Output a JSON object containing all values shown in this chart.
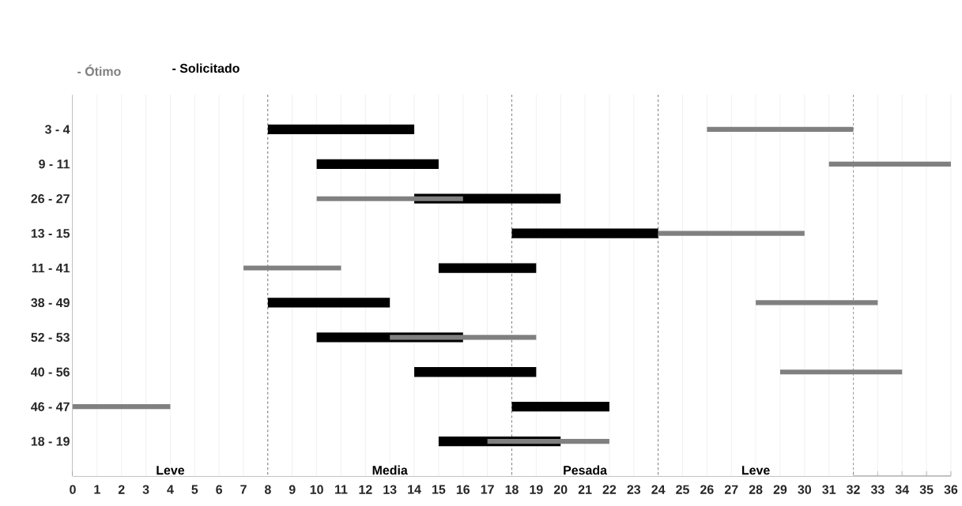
{
  "chart_data": {
    "type": "bar",
    "orientation": "horizontal",
    "categories": [
      "3 - 4",
      "9 - 11",
      "26 - 27",
      "13 - 15",
      "11 - 41",
      "38 - 49",
      "52 - 53",
      "40 - 56",
      "46 - 47",
      "18 - 19"
    ],
    "series": [
      {
        "name": "- Ótimo",
        "color": "#808080",
        "base": [
          26,
          31,
          10,
          24,
          7,
          28,
          13,
          29,
          0,
          17
        ],
        "values": [
          6,
          5,
          6,
          6,
          4,
          5,
          6,
          5,
          4,
          5
        ]
      },
      {
        "name": "- Solicitado",
        "color": "#000000",
        "base": [
          8,
          10,
          14,
          18,
          15,
          8,
          10,
          14,
          18,
          15
        ],
        "values": [
          6,
          5,
          6,
          6,
          4,
          5,
          6,
          5,
          4,
          5
        ]
      }
    ],
    "xlim": [
      0,
      36
    ],
    "xticks": [
      0,
      1,
      2,
      3,
      4,
      5,
      6,
      7,
      8,
      9,
      10,
      11,
      12,
      13,
      14,
      15,
      16,
      17,
      18,
      19,
      20,
      21,
      22,
      23,
      24,
      25,
      26,
      27,
      28,
      29,
      30,
      31,
      32,
      33,
      34,
      35,
      36
    ],
    "grid": "x",
    "legend": "top left",
    "bands": [
      {
        "axis": "x",
        "from": 0,
        "to": 8,
        "label": "Leve",
        "color": "#ffffff"
      },
      {
        "axis": "x",
        "from": 8,
        "to": 18,
        "label": "Media",
        "color": "#ffffff"
      },
      {
        "axis": "x",
        "from": 18,
        "to": 24,
        "label": "Pesada",
        "color": "#ffffff"
      },
      {
        "axis": "x",
        "from": 24,
        "to": 32,
        "label": "Leve",
        "color": "#ffffff"
      }
    ]
  }
}
